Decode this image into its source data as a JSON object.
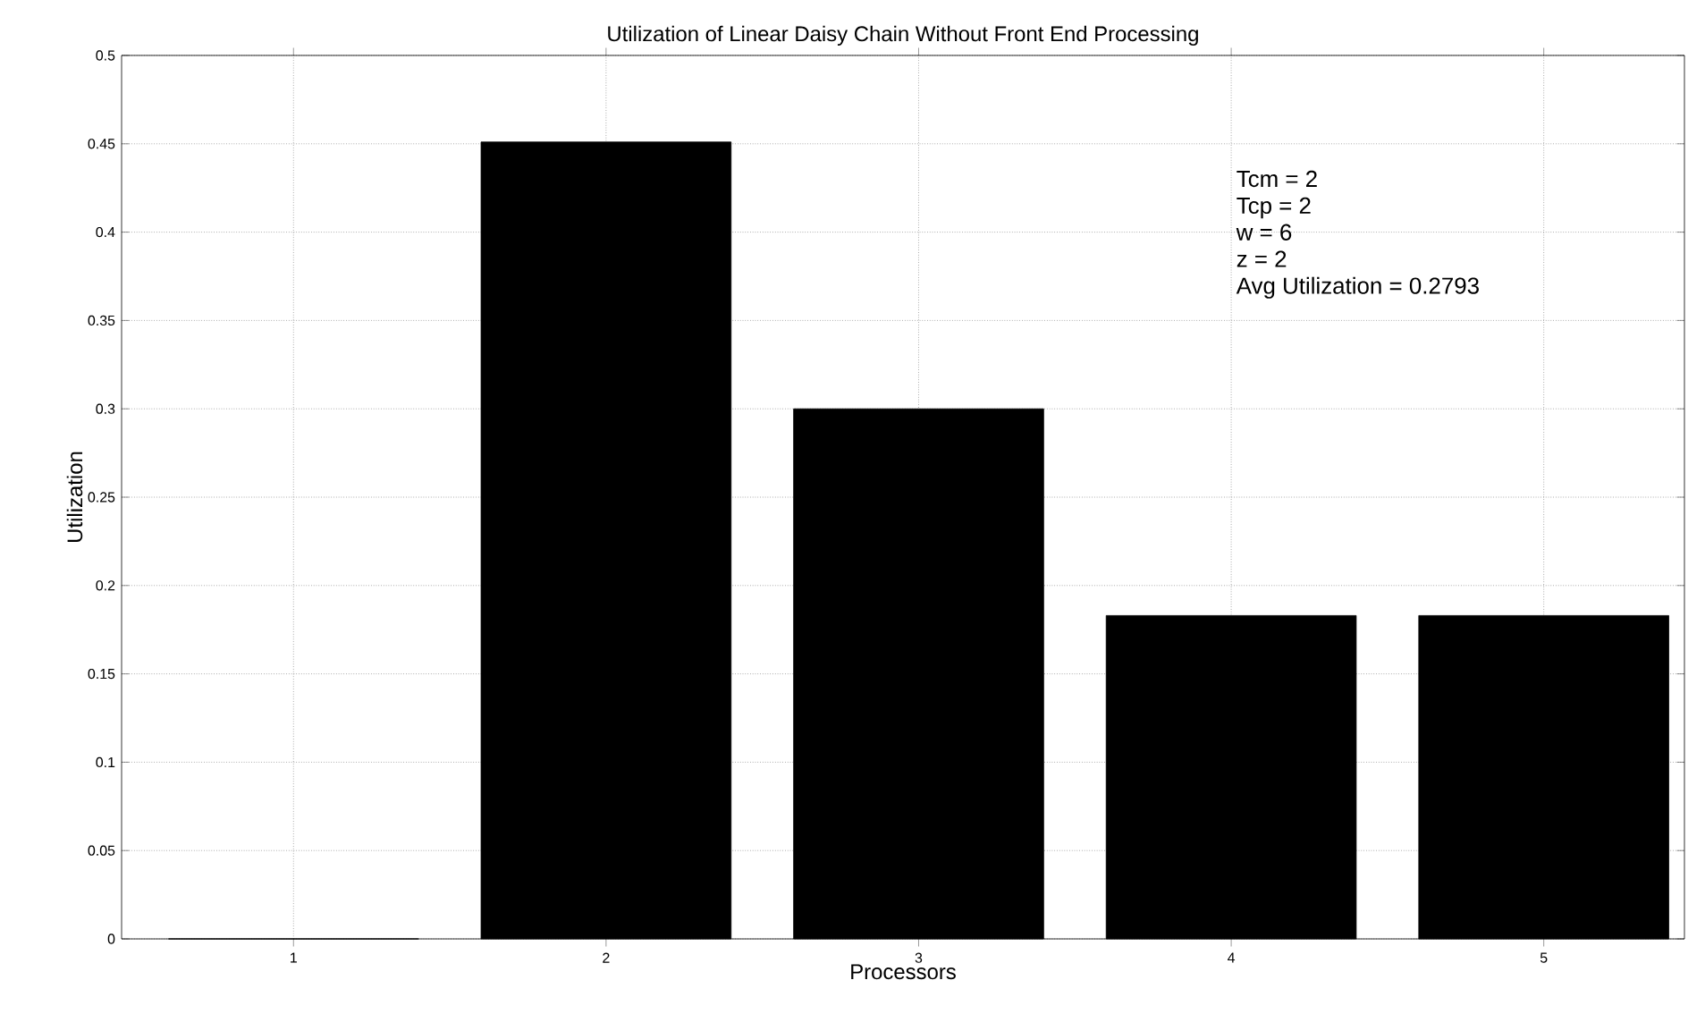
{
  "chart_data": {
    "type": "bar",
    "title": "Utilization of Linear Daisy Chain Without Front End Processing",
    "xlabel": "Processors",
    "ylabel": "Utilization",
    "categories": [
      "1",
      "2",
      "3",
      "4",
      "5"
    ],
    "values": [
      0,
      0.451,
      0.3,
      0.183,
      0.183
    ],
    "color": "#000000",
    "ylim": [
      0,
      0.5
    ],
    "yticks": [
      0,
      0.05,
      0.1,
      0.15,
      0.2,
      0.25,
      0.3,
      0.35,
      0.4,
      0.45,
      0.5
    ],
    "grid": true,
    "annotations": [
      "Tcm = 2",
      "Tcp  = 2",
      "w = 6",
      "z = 2",
      "Avg Utilization = 0.2793"
    ]
  }
}
